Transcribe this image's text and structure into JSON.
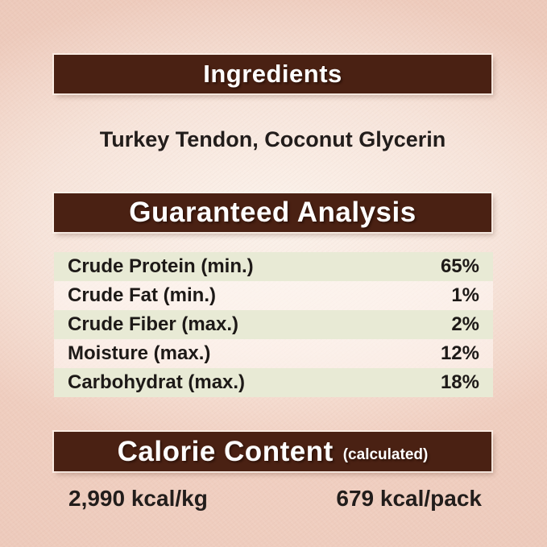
{
  "sections": {
    "ingredients": {
      "header": "Ingredients",
      "content": "Turkey Tendon, Coconut Glycerin"
    },
    "guaranteed_analysis": {
      "header": "Guaranteed Analysis",
      "rows": [
        {
          "label": "Crude Protein (min.)",
          "value": "65%"
        },
        {
          "label": "Crude Fat (min.)",
          "value": "1%"
        },
        {
          "label": "Crude Fiber (max.)",
          "value": "2%"
        },
        {
          "label": "Moisture (max.)",
          "value": "12%"
        },
        {
          "label": "Carbohydrat (max.)",
          "value": "18%"
        }
      ]
    },
    "calorie_content": {
      "header": "Calorie Content",
      "header_note": "(calculated)",
      "per_kg": "2,990 kcal/kg",
      "per_pack": "679 kcal/pack"
    }
  },
  "colors": {
    "header_bg": "#4a2113",
    "header_text": "#ffffff",
    "row_stripe": "#e8ead5",
    "row_alt": "#fdf8f4",
    "body_text": "#221d1b",
    "background": "#eccabc"
  }
}
